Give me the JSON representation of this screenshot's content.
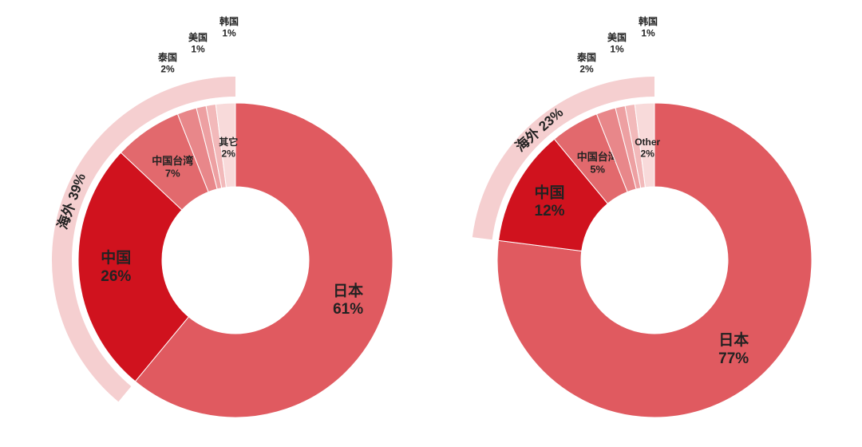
{
  "chart_data": [
    {
      "type": "pie",
      "categories": [
        "日本",
        "中国",
        "中国台湾",
        "泰国",
        "美国",
        "韩国",
        "其它"
      ],
      "values": [
        61,
        26,
        7,
        2,
        1,
        1,
        2
      ],
      "value_labels": [
        "61%",
        "26%",
        "7%",
        "2%",
        "1%",
        "1%",
        "2%"
      ],
      "colors": [
        "#e05a60",
        "#d0121e",
        "#e2696d",
        "#e8878a",
        "#eda0a2",
        "#f2b9ba",
        "#f8dada"
      ],
      "overseas": {
        "label": "海外 39%",
        "value": 39,
        "color": "#f5cfd0"
      }
    },
    {
      "type": "pie",
      "categories": [
        "日本",
        "中国",
        "中国台湾",
        "泰国",
        "美国",
        "韩国",
        "Other"
      ],
      "values": [
        77,
        12,
        5,
        2,
        1,
        1,
        2
      ],
      "value_labels": [
        "77%",
        "12%",
        "5%",
        "2%",
        "1%",
        "1%",
        "2%"
      ],
      "colors": [
        "#e05a60",
        "#d0121e",
        "#e2696d",
        "#e8878a",
        "#eda0a2",
        "#f2b9ba",
        "#f8dada"
      ],
      "overseas": {
        "label": "海外 23%",
        "value": 23,
        "color": "#f5cfd0"
      }
    }
  ]
}
